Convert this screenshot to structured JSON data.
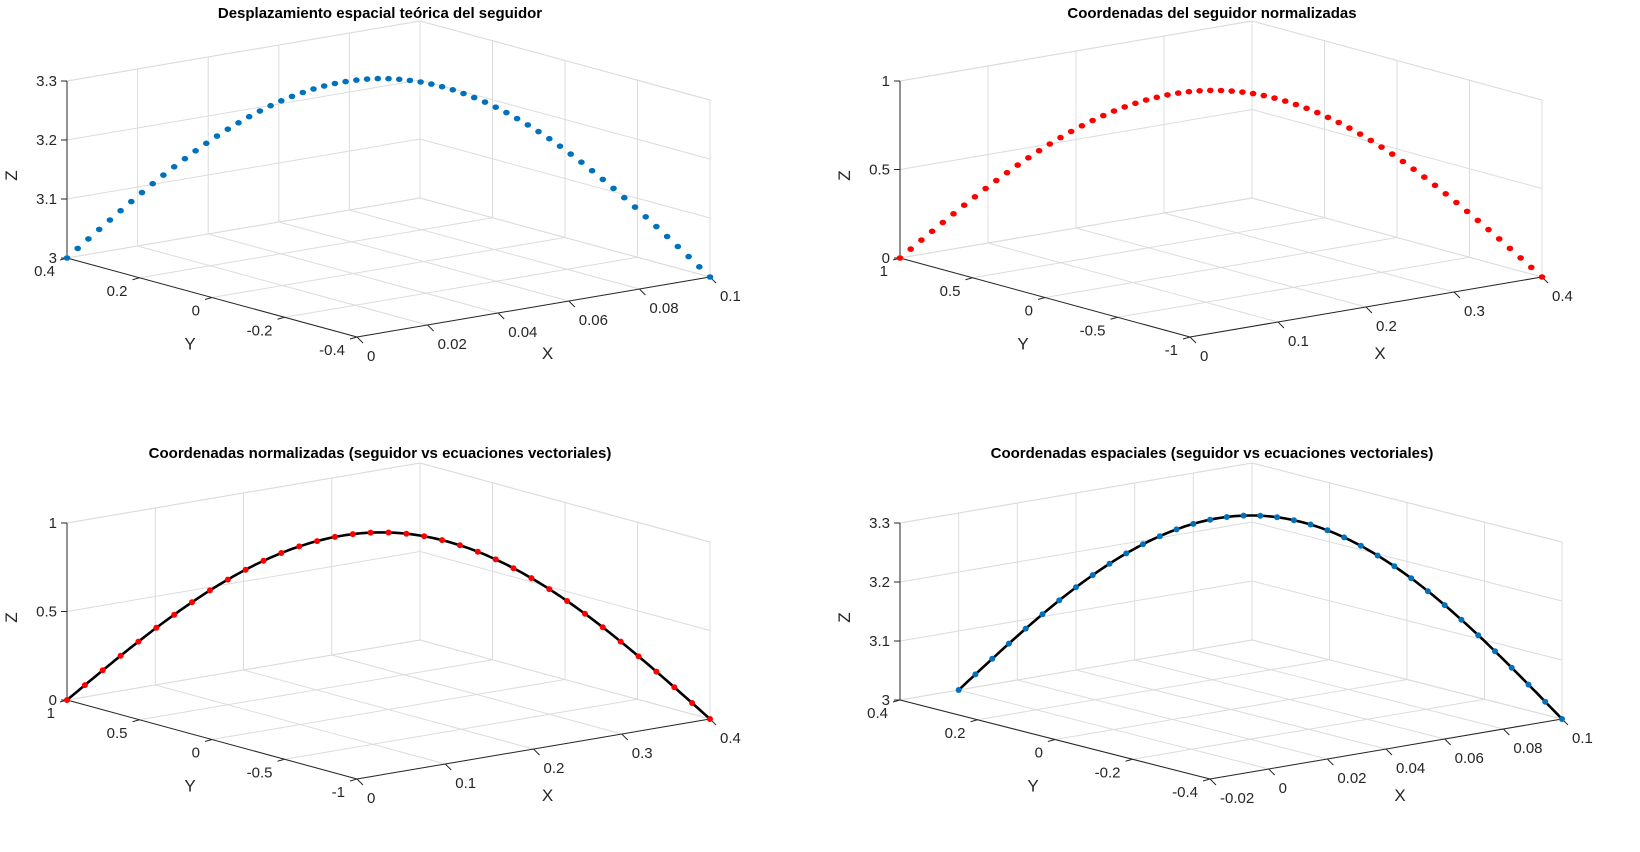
{
  "figure": {
    "colors": {
      "blue": "#0072BD",
      "red": "#FF0000",
      "black": "#000000",
      "grid": "#DCDCDC",
      "axis": "#262626"
    }
  },
  "chart_data": [
    {
      "type": "scatter3d",
      "title": "Desplazamiento espacial teórica del seguidor",
      "xlabel": "X",
      "ylabel": "Y",
      "zlabel": "Z",
      "xlim": [
        0,
        0.1
      ],
      "ylim": [
        -0.4,
        0.4
      ],
      "zlim": [
        3,
        3.3
      ],
      "xticks": [
        0,
        0.02,
        0.04,
        0.06,
        0.08,
        0.1
      ],
      "xtick_labels": [
        "0",
        "0.02",
        "0.04",
        "0.06",
        "0.08",
        "0.1"
      ],
      "yticks": [
        -0.4,
        -0.2,
        0,
        0.2,
        0.4
      ],
      "ytick_labels": [
        "-0.4",
        "-0.2",
        "0",
        "0.2",
        "0.4"
      ],
      "zticks": [
        3,
        3.1,
        3.2,
        3.3
      ],
      "ztick_labels": [
        "3",
        "3.1",
        "3.2",
        "3.3"
      ],
      "grid": true,
      "series": [
        {
          "style": "markers",
          "color": "#0072BD",
          "shape": "ellipse",
          "x_range": [
            0,
            0.1
          ],
          "y_range": [
            0.4,
            -0.4
          ],
          "z_range": [
            3.0,
            3.32
          ],
          "n_points": 61
        }
      ]
    },
    {
      "type": "scatter3d",
      "title": "Coordenadas del seguidor normalizadas",
      "xlabel": "X",
      "ylabel": "Y",
      "zlabel": "Z",
      "xlim": [
        0,
        0.4
      ],
      "ylim": [
        -1,
        1
      ],
      "zlim": [
        0,
        1
      ],
      "xticks": [
        0,
        0.1,
        0.2,
        0.3,
        0.4
      ],
      "xtick_labels": [
        "0",
        "0.1",
        "0.2",
        "0.3",
        "0.4"
      ],
      "yticks": [
        -1,
        -0.5,
        0,
        0.5,
        1
      ],
      "ytick_labels": [
        "-1",
        "-0.5",
        "0",
        "0.5",
        "1"
      ],
      "zticks": [
        0,
        0.5,
        1
      ],
      "ztick_labels": [
        "0",
        "0.5",
        "1"
      ],
      "grid": true,
      "series": [
        {
          "style": "markers",
          "color": "#FF0000",
          "shape": "ellipse",
          "x_range": [
            0,
            0.4
          ],
          "y_range": [
            1,
            -1
          ],
          "z_range": [
            0,
            1
          ],
          "n_points": 61
        }
      ]
    },
    {
      "type": "line3d",
      "title": "Coordenadas normalizadas (seguidor vs ecuaciones vectoriales)",
      "xlabel": "X",
      "ylabel": "Y",
      "zlabel": "Z",
      "xlim": [
        0,
        0.4
      ],
      "ylim": [
        -1,
        1
      ],
      "zlim": [
        0,
        1
      ],
      "xticks": [
        0,
        0.1,
        0.2,
        0.3,
        0.4
      ],
      "xtick_labels": [
        "0",
        "0.1",
        "0.2",
        "0.3",
        "0.4"
      ],
      "yticks": [
        -1,
        -0.5,
        0,
        0.5,
        1
      ],
      "ytick_labels": [
        "-1",
        "-0.5",
        "0",
        "0.5",
        "1"
      ],
      "zticks": [
        0,
        0.5,
        1
      ],
      "ztick_labels": [
        "0",
        "0.5",
        "1"
      ],
      "grid": true,
      "series": [
        {
          "style": "line",
          "color": "#000000",
          "x_range": [
            0,
            0.4
          ],
          "y_range": [
            1,
            -1
          ],
          "z_range": [
            0,
            1
          ],
          "n_points": 121
        },
        {
          "style": "markers",
          "color": "#FF0000",
          "shape": "circle",
          "x_range": [
            0,
            0.4
          ],
          "y_range": [
            1,
            -1
          ],
          "z_range": [
            0,
            1
          ],
          "n_points": 37
        }
      ]
    },
    {
      "type": "line3d",
      "title": "Coordenadas espaciales (seguidor vs ecuaciones vectoriales)",
      "xlabel": "X",
      "ylabel": "Y",
      "zlabel": "Z",
      "xlim": [
        -0.02,
        0.1
      ],
      "ylim": [
        -0.4,
        0.4
      ],
      "zlim": [
        3,
        3.3
      ],
      "xticks": [
        -0.02,
        0,
        0.02,
        0.04,
        0.06,
        0.08,
        0.1
      ],
      "xtick_labels": [
        "-0.02",
        "0",
        "0.02",
        "0.04",
        "0.06",
        "0.08",
        "0.1"
      ],
      "yticks": [
        -0.4,
        -0.2,
        0,
        0.2,
        0.4
      ],
      "ytick_labels": [
        "-0.4",
        "-0.2",
        "0",
        "0.2",
        "0.4"
      ],
      "zticks": [
        3,
        3.1,
        3.2,
        3.3
      ],
      "ztick_labels": [
        "3",
        "3.1",
        "3.2",
        "3.3"
      ],
      "grid": true,
      "series": [
        {
          "style": "line",
          "color": "#000000",
          "x_range": [
            0,
            0.1
          ],
          "y_range": [
            0.4,
            -0.4
          ],
          "z_range": [
            3.0,
            3.32
          ],
          "n_points": 121
        },
        {
          "style": "markers",
          "color": "#0072BD",
          "shape": "circle",
          "x_range": [
            0,
            0.1
          ],
          "y_range": [
            0.4,
            -0.4
          ],
          "z_range": [
            3.0,
            3.32
          ],
          "n_points": 37
        }
      ]
    }
  ]
}
